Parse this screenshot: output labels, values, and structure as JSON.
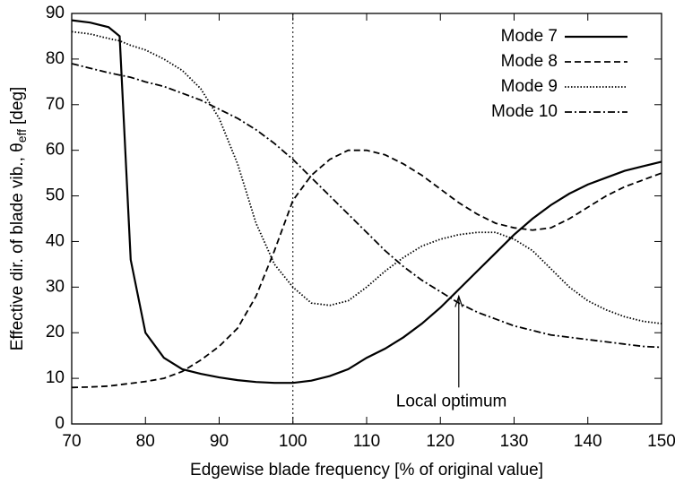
{
  "chart_data": {
    "type": "line",
    "xlabel": "Edgewise blade frequency [% of original value]",
    "ylabel": "Effective dir. of blade vib., θ",
    "ylabel_sub": "eff",
    "ylabel_unit": "[deg]",
    "x": [
      70,
      72.5,
      75,
      76.5,
      78,
      80,
      82.5,
      85,
      87.5,
      90,
      92.5,
      95,
      97.5,
      100,
      102.5,
      105,
      107.5,
      110,
      112.5,
      115,
      117.5,
      120,
      122.5,
      125,
      127.5,
      130,
      132.5,
      135,
      137.5,
      140,
      142.5,
      145,
      147.5,
      150
    ],
    "series": [
      {
        "name": "Mode 7",
        "color": "#000000",
        "dash": "none",
        "values": [
          88.5,
          88,
          87,
          85,
          36,
          20,
          14.5,
          12,
          11,
          10.2,
          9.6,
          9.2,
          9,
          9,
          9.5,
          10.5,
          12,
          14.5,
          16.5,
          19,
          22,
          25.5,
          29.5,
          33.5,
          37.5,
          41.5,
          45,
          48,
          50.5,
          52.5,
          54,
          55.5,
          56.5,
          57.5
        ]
      },
      {
        "name": "Mode 8",
        "color": "#000000",
        "dash": "7,4",
        "values": [
          8,
          8.1,
          8.3,
          8.6,
          8.9,
          9.3,
          10,
          11.5,
          14,
          17,
          21,
          28,
          38,
          49,
          54.5,
          58,
          60,
          60,
          59,
          57,
          54.5,
          51.5,
          48.5,
          46,
          44,
          43,
          42.5,
          43,
          45,
          47.5,
          50,
          52,
          53.5,
          55
        ]
      },
      {
        "name": "Mode 9",
        "color": "#000000",
        "dash": "1.5,2",
        "values": [
          86,
          85.5,
          84.5,
          84,
          83,
          82,
          80,
          77.5,
          73.5,
          67,
          57,
          44,
          35,
          30,
          26.5,
          26,
          27,
          30,
          33.5,
          36.5,
          39,
          40.5,
          41.5,
          42,
          42,
          40.5,
          38,
          34,
          30,
          27,
          25,
          23.5,
          22.5,
          22
        ]
      },
      {
        "name": "Mode 10",
        "color": "#000000",
        "dash": "8,3,2,3",
        "values": [
          79,
          78,
          77,
          76.5,
          76,
          75,
          74,
          72.5,
          71,
          69,
          67,
          64.5,
          61.5,
          58,
          54,
          50,
          46,
          42,
          38,
          34.5,
          31.5,
          29,
          26.5,
          24.5,
          23,
          21.5,
          20.5,
          19.5,
          19,
          18.5,
          18,
          17.5,
          17,
          16.8
        ]
      }
    ],
    "xlim": [
      70,
      150
    ],
    "xticks": [
      70,
      80,
      90,
      100,
      110,
      120,
      130,
      140,
      150
    ],
    "ylim": [
      0,
      90
    ],
    "yticks": [
      0,
      10,
      20,
      30,
      40,
      50,
      60,
      70,
      80,
      90
    ],
    "vline": 100,
    "annotation": {
      "text": "Local optimum",
      "xy": [
        122.5,
        28
      ],
      "xytext": [
        121.5,
        8
      ]
    },
    "legend": "upper right"
  }
}
